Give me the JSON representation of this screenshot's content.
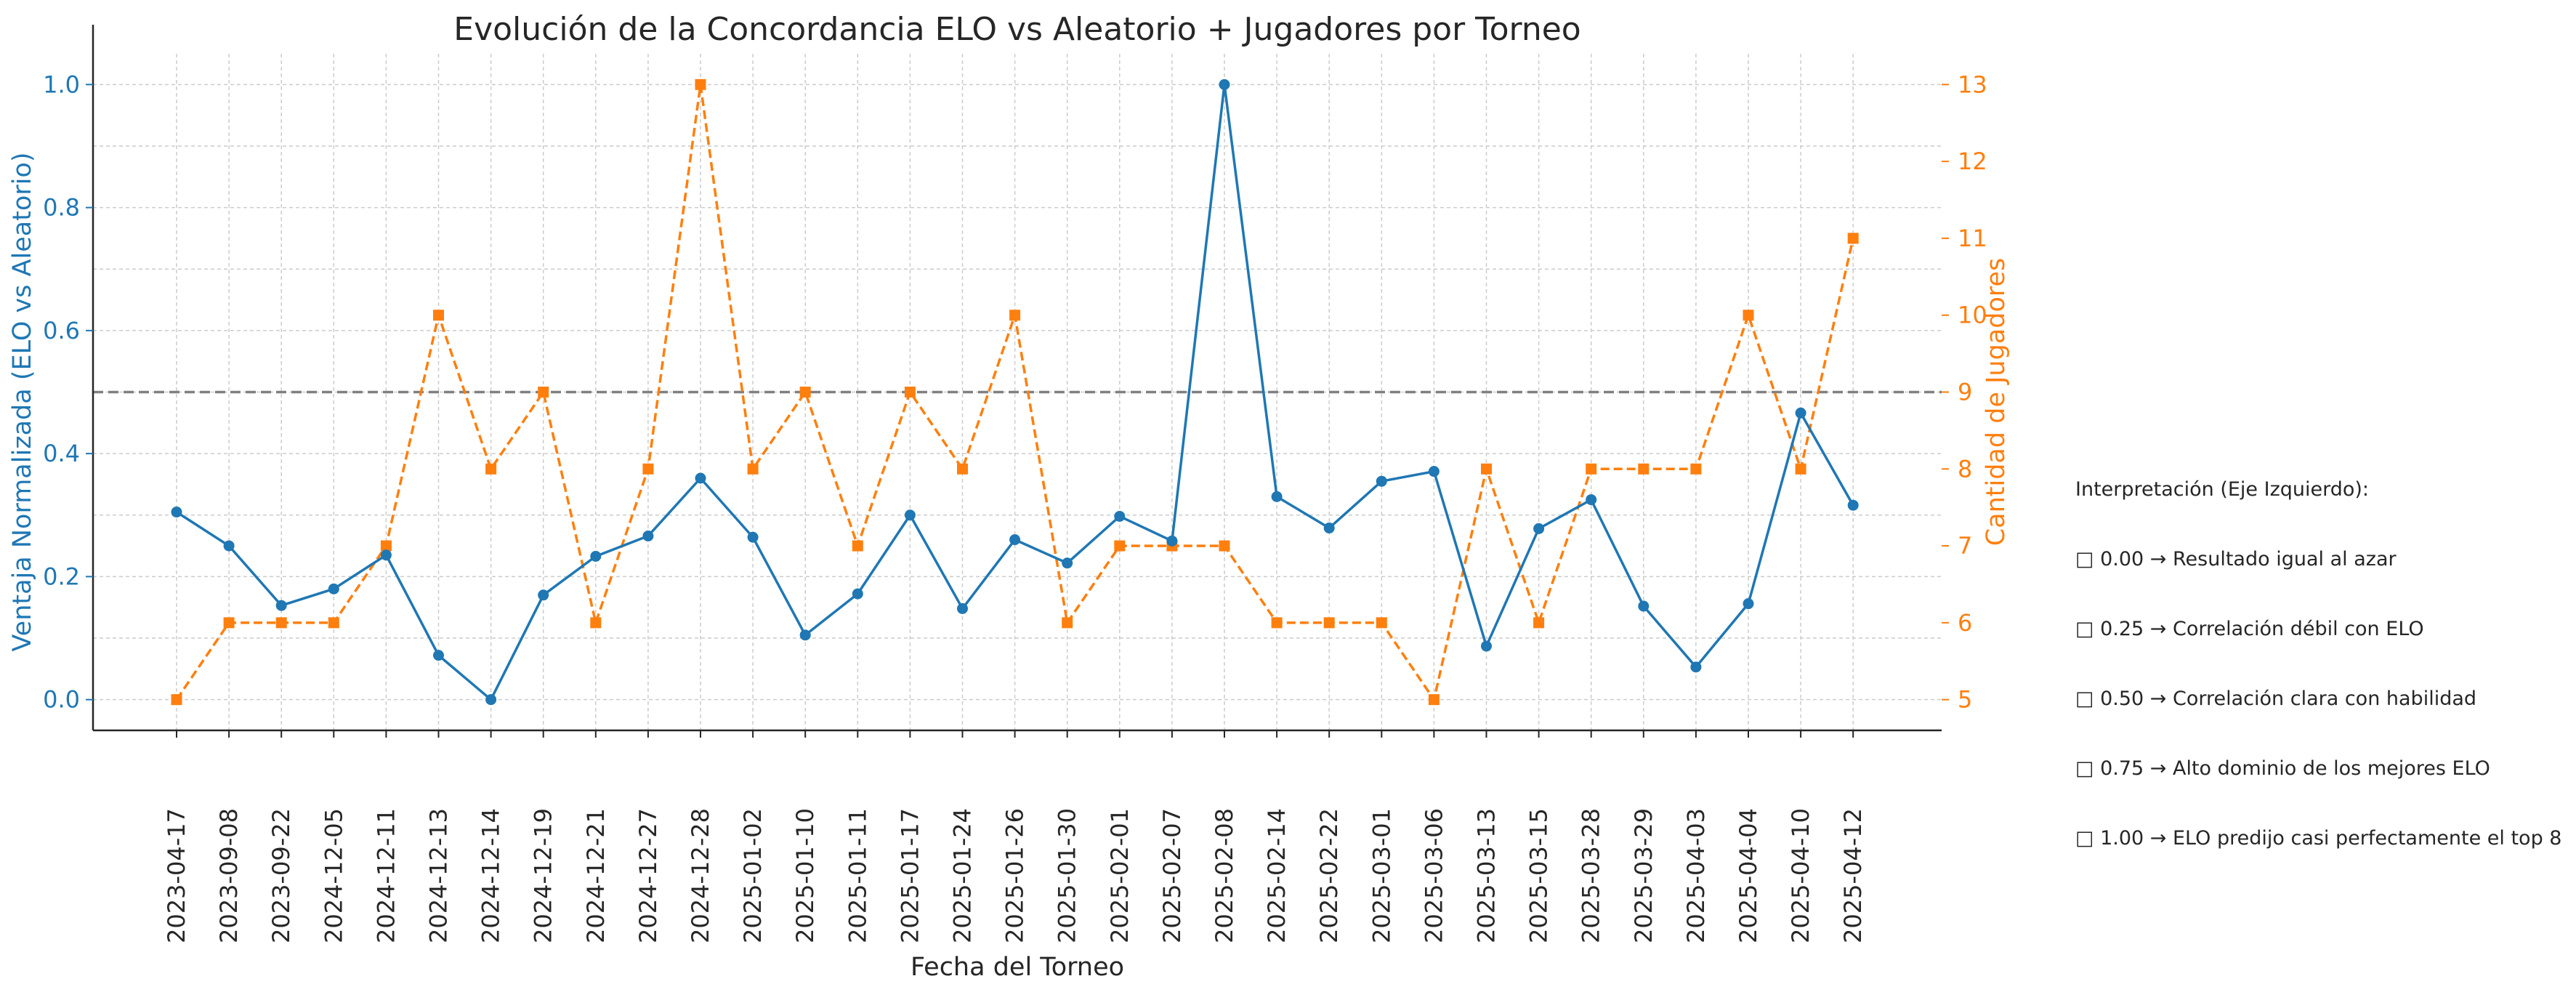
{
  "chart_data": {
    "type": "line",
    "title": "Evolución de la Concordancia ELO vs Aleatorio + Jugadores por Torneo",
    "xlabel": "Fecha del Torneo",
    "ylabel": "Ventaja Normalizada (ELO vs Aleatorio)",
    "y2label": "Cantidad de Jugadores",
    "categories": [
      "2023-04-17",
      "2023-09-08",
      "2023-09-22",
      "2024-12-05",
      "2024-12-11",
      "2024-12-13",
      "2024-12-14",
      "2024-12-19",
      "2024-12-21",
      "2024-12-27",
      "2024-12-28",
      "2025-01-02",
      "2025-01-10",
      "2025-01-11",
      "2025-01-17",
      "2025-01-24",
      "2025-01-26",
      "2025-01-30",
      "2025-02-01",
      "2025-02-07",
      "2025-02-08",
      "2025-02-14",
      "2025-02-22",
      "2025-03-01",
      "2025-03-06",
      "2025-03-13",
      "2025-03-15",
      "2025-03-28",
      "2025-03-29",
      "2025-04-03",
      "2025-04-04",
      "2025-04-10",
      "2025-04-12"
    ],
    "ylim": [
      -0.05,
      1.05
    ],
    "y2lim": [
      4.6,
      13.4
    ],
    "yticks": [
      "0.0",
      "0.2",
      "0.4",
      "0.6",
      "0.8",
      "1.0"
    ],
    "y2ticks": [
      "5",
      "6",
      "7",
      "8",
      "9",
      "10",
      "11",
      "12",
      "13"
    ],
    "reference_line": 0.5,
    "grid": true,
    "series": [
      {
        "axis": "left",
        "color": "#1f77b4",
        "style": "solid",
        "marker": "circle",
        "values": [
          0.305,
          0.25,
          0.153,
          0.18,
          0.235,
          0.072,
          0.0,
          0.17,
          0.233,
          0.266,
          0.36,
          0.264,
          0.105,
          0.172,
          0.3,
          0.148,
          0.26,
          0.222,
          0.298,
          0.258,
          1.0,
          0.33,
          0.279,
          0.355,
          0.371,
          0.087,
          0.278,
          0.325,
          0.152,
          0.053,
          0.156,
          0.466,
          0.316
        ]
      },
      {
        "axis": "right",
        "color": "#ff7f0e",
        "style": "dashed",
        "marker": "square",
        "values": [
          5,
          6,
          6,
          6,
          7,
          10,
          8,
          9,
          6,
          8,
          13,
          8,
          9,
          7,
          9,
          8,
          10,
          6,
          7,
          7,
          7,
          6,
          6,
          6,
          5,
          8,
          6,
          8,
          8,
          8,
          10,
          8,
          11
        ]
      }
    ]
  },
  "annotation": {
    "heading": "Interpretación (Eje Izquierdo):",
    "lines": [
      "□ 0.00 → Resultado igual al azar",
      "□ 0.25 → Correlación débil con ELO",
      "□ 0.50 → Correlación clara con habilidad",
      "□ 0.75 → Alto dominio de los mejores ELO",
      "□ 1.00 → ELO predijo casi perfectamente el top 8"
    ]
  },
  "colors": {
    "left": "#1f77b4",
    "right": "#ff7f0e",
    "reference": "#808080",
    "grid": "#cccccc",
    "axis": "#262626"
  }
}
